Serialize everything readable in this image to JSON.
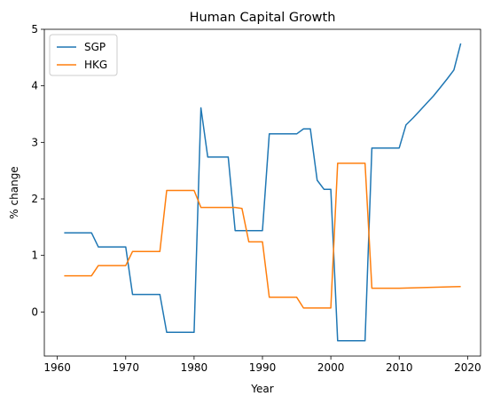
{
  "chart_data": {
    "type": "line",
    "title": "Human Capital Growth",
    "xlabel": "Year",
    "ylabel": "% change",
    "xlim": [
      1958.1,
      2021.9
    ],
    "ylim": [
      -0.78,
      5.0
    ],
    "xticks": [
      1960,
      1970,
      1980,
      1990,
      2000,
      2010,
      2020
    ],
    "yticks": [
      0,
      1,
      2,
      3,
      4,
      5
    ],
    "grid": false,
    "legend": "top-left",
    "series": [
      {
        "name": "SGP",
        "color": "#1f77b4",
        "points": [
          [
            1961,
            1.4
          ],
          [
            1965,
            1.4
          ],
          [
            1966,
            1.15
          ],
          [
            1970,
            1.15
          ],
          [
            1971,
            0.31
          ],
          [
            1975,
            0.31
          ],
          [
            1976,
            -0.36
          ],
          [
            1980,
            -0.36
          ],
          [
            1981,
            3.61
          ],
          [
            1982,
            2.74
          ],
          [
            1985,
            2.74
          ],
          [
            1986,
            1.44
          ],
          [
            1990,
            1.44
          ],
          [
            1991,
            3.15
          ],
          [
            1995,
            3.15
          ],
          [
            1996,
            3.24
          ],
          [
            1997,
            3.24
          ],
          [
            1998,
            2.33
          ],
          [
            1999,
            2.17
          ],
          [
            2000,
            2.17
          ],
          [
            2001,
            -0.51
          ],
          [
            2005,
            -0.51
          ],
          [
            2006,
            2.9
          ],
          [
            2010,
            2.9
          ],
          [
            2011,
            3.31
          ],
          [
            2012,
            3.43
          ],
          [
            2013,
            3.56
          ],
          [
            2014,
            3.69
          ],
          [
            2015,
            3.82
          ],
          [
            2016,
            3.97
          ],
          [
            2017,
            4.12
          ],
          [
            2018,
            4.28
          ],
          [
            2019,
            4.75
          ]
        ]
      },
      {
        "name": "HKG",
        "color": "#ff7f0e",
        "points": [
          [
            1961,
            0.64
          ],
          [
            1965,
            0.64
          ],
          [
            1966,
            0.82
          ],
          [
            1970,
            0.82
          ],
          [
            1971,
            1.07
          ],
          [
            1975,
            1.07
          ],
          [
            1976,
            2.15
          ],
          [
            1980,
            2.15
          ],
          [
            1981,
            1.85
          ],
          [
            1986,
            1.85
          ],
          [
            1987,
            1.83
          ],
          [
            1988,
            1.24
          ],
          [
            1990,
            1.24
          ],
          [
            1991,
            0.26
          ],
          [
            1995,
            0.26
          ],
          [
            1996,
            0.07
          ],
          [
            2000,
            0.07
          ],
          [
            2001,
            2.63
          ],
          [
            2005,
            2.63
          ],
          [
            2006,
            0.42
          ],
          [
            2010,
            0.42
          ],
          [
            2019,
            0.45
          ]
        ]
      }
    ]
  }
}
